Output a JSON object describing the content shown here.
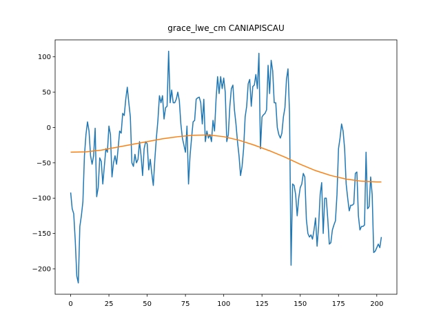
{
  "chart_data": {
    "type": "line",
    "title": "grace_lwe_cm CANIAPISCAU",
    "x": [
      0,
      1,
      2,
      3,
      4,
      5,
      6,
      7,
      8,
      9,
      10,
      11,
      12,
      13,
      14,
      15,
      16,
      17,
      18,
      19,
      20,
      21,
      22,
      23,
      24,
      25,
      26,
      27,
      28,
      29,
      30,
      31,
      32,
      33,
      34,
      35,
      36,
      37,
      38,
      39,
      40,
      41,
      42,
      43,
      44,
      45,
      46,
      47,
      48,
      49,
      50,
      51,
      52,
      53,
      54,
      55,
      56,
      57,
      58,
      59,
      60,
      61,
      62,
      63,
      64,
      65,
      66,
      67,
      68,
      69,
      70,
      71,
      72,
      73,
      74,
      75,
      76,
      77,
      78,
      79,
      80,
      81,
      82,
      83,
      84,
      85,
      86,
      87,
      88,
      89,
      90,
      91,
      92,
      93,
      94,
      95,
      96,
      97,
      98,
      99,
      100,
      101,
      102,
      103,
      104,
      105,
      106,
      107,
      108,
      109,
      110,
      111,
      112,
      113,
      114,
      115,
      116,
      117,
      118,
      119,
      120,
      121,
      122,
      123,
      124,
      125,
      126,
      127,
      128,
      129,
      130,
      131,
      132,
      133,
      134,
      135,
      136,
      137,
      138,
      139,
      140,
      141,
      142,
      143,
      144,
      145,
      146,
      147,
      148,
      149,
      150,
      151,
      152,
      153,
      154,
      155,
      156,
      157,
      158,
      159,
      160,
      161,
      162,
      163,
      164,
      165,
      166,
      167,
      168,
      169,
      170,
      171,
      172,
      173,
      174,
      175,
      176,
      177,
      178,
      179,
      180,
      181,
      182,
      183,
      184,
      185,
      186,
      187,
      188,
      189,
      190,
      191,
      192,
      193,
      194,
      195,
      196,
      197,
      198,
      199,
      200,
      201,
      202,
      203
    ],
    "series": [
      {
        "color": "#1f77b4",
        "values": [
          -92,
          -115,
          -122,
          -160,
          -210,
          -220,
          -140,
          -125,
          -105,
          -40,
          -10,
          8,
          -5,
          -40,
          -52,
          -40,
          -1,
          -98,
          -85,
          -43,
          -48,
          -80,
          -55,
          -30,
          -35,
          2,
          -10,
          -70,
          -50,
          -40,
          -52,
          -30,
          -5,
          -8,
          20,
          17,
          40,
          57,
          35,
          15,
          -50,
          -55,
          -38,
          -50,
          -45,
          -20,
          -40,
          -68,
          -30,
          -20,
          -23,
          -60,
          -45,
          -65,
          -82,
          -45,
          -15,
          10,
          45,
          35,
          45,
          12,
          28,
          30,
          108,
          35,
          53,
          35,
          35,
          40,
          50,
          38,
          5,
          -15,
          -25,
          -35,
          2,
          -80,
          -40,
          -15,
          8,
          10,
          40,
          42,
          43,
          35,
          5,
          40,
          -20,
          -5,
          -15,
          -10,
          -20,
          10,
          -5,
          40,
          72,
          48,
          72,
          55,
          70,
          50,
          -20,
          -10,
          30,
          55,
          60,
          25,
          5,
          -20,
          -40,
          -68,
          -55,
          -30,
          15,
          30,
          62,
          68,
          30,
          58,
          60,
          75,
          55,
          105,
          -30,
          15,
          18,
          20,
          25,
          88,
          48,
          95,
          80,
          35,
          35,
          0,
          -10,
          -15,
          -8,
          15,
          28,
          68,
          83,
          20,
          -195,
          -80,
          -82,
          -95,
          -125,
          -100,
          -85,
          -80,
          -65,
          -70,
          -130,
          -150,
          -155,
          -152,
          -158,
          -145,
          -128,
          -168,
          -140,
          -95,
          -78,
          -150,
          -100,
          -100,
          -130,
          -165,
          -163,
          -145,
          -138,
          -132,
          -95,
          -30,
          -15,
          5,
          -5,
          -30,
          -80,
          -100,
          -118,
          -110,
          -110,
          -108,
          -65,
          -63,
          -125,
          -145,
          -140,
          -140,
          -138,
          -35,
          -115,
          -112,
          -70,
          -95,
          -177,
          -175,
          -170,
          -165,
          -170,
          -155
        ]
      },
      {
        "color": "#ff7f0e",
        "x": [
          0,
          10,
          20,
          30,
          40,
          50,
          60,
          70,
          80,
          90,
          100,
          110,
          120,
          130,
          140,
          150,
          160,
          170,
          180,
          190,
          200,
          203
        ],
        "values": [
          -35,
          -34.5,
          -32,
          -28,
          -24,
          -20,
          -16,
          -13,
          -11,
          -10.5,
          -13,
          -18,
          -25,
          -33,
          -42,
          -52,
          -61,
          -68,
          -73,
          -76,
          -77,
          -77
        ]
      }
    ],
    "xlim": [
      -10.15,
      213.15
    ],
    "ylim": [
      -236,
      124
    ],
    "xticks": [
      0,
      25,
      50,
      75,
      100,
      125,
      150,
      175,
      200
    ],
    "yticks": [
      {
        "value": -200,
        "label": "−200"
      },
      {
        "value": -150,
        "label": "−150"
      },
      {
        "value": -100,
        "label": "−100"
      },
      {
        "value": -50,
        "label": "−50"
      },
      0,
      50,
      100
    ]
  }
}
